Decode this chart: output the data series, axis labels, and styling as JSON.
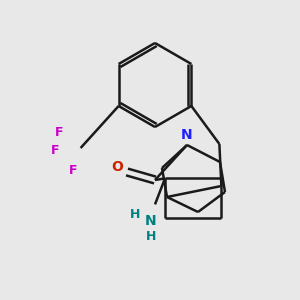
{
  "background_color": "#e8e8e8",
  "bond_color": "#1a1a1a",
  "nitrogen_color": "#2020ff",
  "fluorine_color": "#cc00cc",
  "oxygen_color": "#cc2200",
  "nh_color": "#008080",
  "line_width": 1.8,
  "figsize": [
    3.0,
    3.0
  ],
  "dpi": 100,
  "xlim": [
    0,
    300
  ],
  "ylim": [
    0,
    300
  ]
}
